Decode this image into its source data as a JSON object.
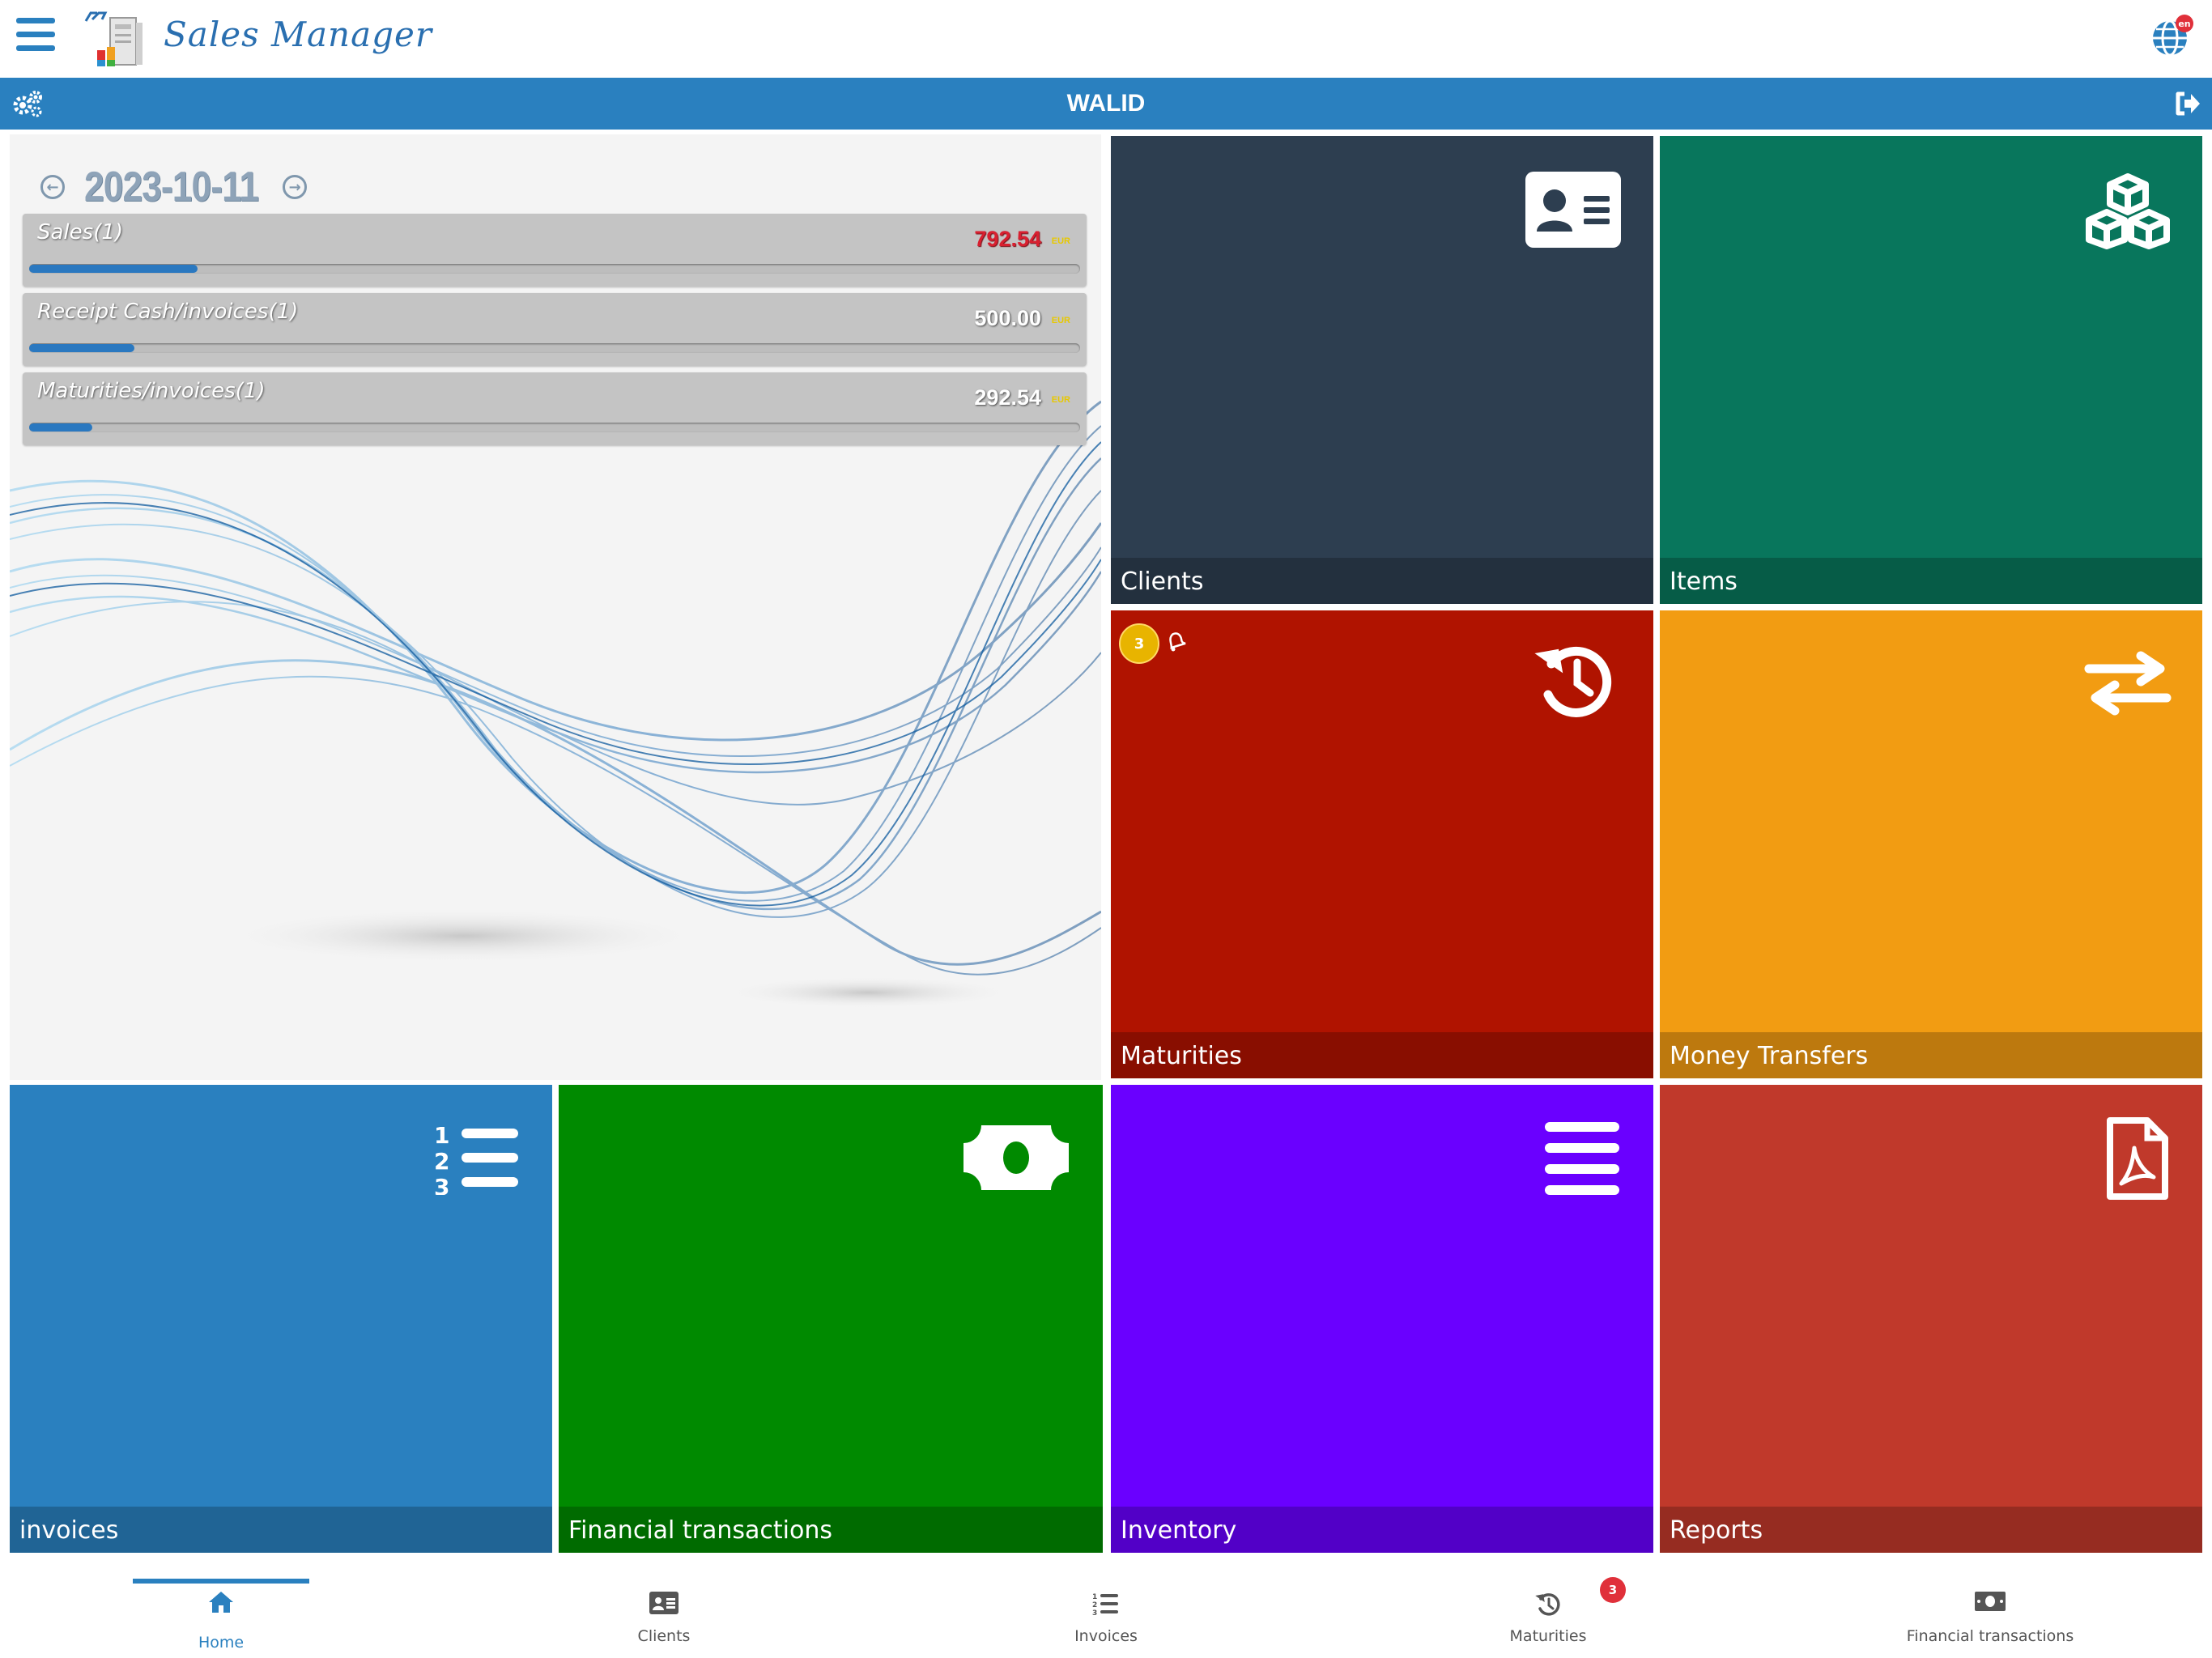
{
  "app": {
    "title": "Sales Manager",
    "user": "WALID",
    "lang_badge": "en"
  },
  "dashboard": {
    "date": "2023-10-11",
    "stats": [
      {
        "label": "Sales(1)",
        "value": "792.54",
        "currency": "EUR",
        "progress": 0.16
      },
      {
        "label": "Receipt Cash/invoices(1)",
        "value": "500.00",
        "currency": "EUR",
        "progress": 0.1
      },
      {
        "label": "Maturities/invoices(1)",
        "value": "292.54",
        "currency": "EUR",
        "progress": 0.06
      }
    ]
  },
  "tiles": {
    "clients": {
      "label": "Clients",
      "color": "#2d3e50",
      "icon": "address-card-icon"
    },
    "items": {
      "label": "Items",
      "color": "#08765c",
      "icon": "cubes-icon"
    },
    "maturities": {
      "label": "Maturities",
      "color": "#b01300",
      "icon": "history-icon",
      "badge": "3"
    },
    "money_transfers": {
      "label": "Money Transfers",
      "color": "#f29c12",
      "icon": "exchange-icon"
    },
    "invoices": {
      "label": "invoices",
      "color": "#2a80bf",
      "icon": "ordered-list-icon"
    },
    "financial_transactions": {
      "label": "Financial transactions",
      "color": "#008a00",
      "icon": "money-bill-icon"
    },
    "inventory": {
      "label": "Inventory",
      "color": "#6a00ff",
      "icon": "bars-icon"
    },
    "reports": {
      "label": "Reports",
      "color": "#c0392b",
      "icon": "pdf-file-icon"
    }
  },
  "bottom_nav": {
    "items": [
      {
        "label": "Home",
        "icon": "home-icon",
        "active": true
      },
      {
        "label": "Clients",
        "icon": "address-card-icon"
      },
      {
        "label": "Invoices",
        "icon": "ordered-list-icon"
      },
      {
        "label": "Maturities",
        "icon": "history-icon",
        "badge": "3"
      },
      {
        "label": "Financial transactions",
        "icon": "money-bill-icon"
      }
    ]
  }
}
